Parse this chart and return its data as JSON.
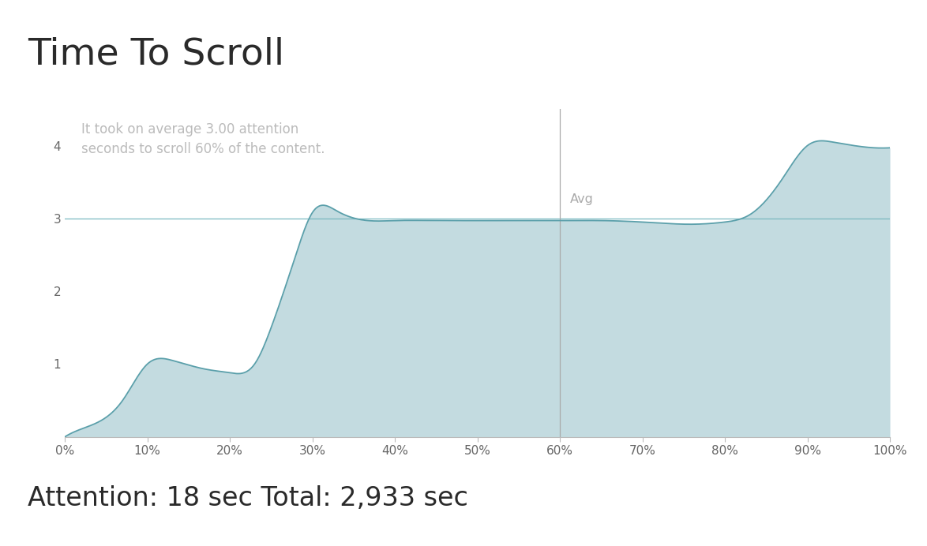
{
  "title": "Time To Scroll",
  "annotation_line1": "It took on average 3.00 attention",
  "annotation_line2": "seconds to scroll 60% of the content.",
  "annotation_color": "#bbbbbb",
  "bottom_text": "Attention: 18 sec Total: 2,933 sec",
  "avg_label": "Avg",
  "avg_x": 60,
  "avg_line_color": "#aaaaaa",
  "hline_y": 3.0,
  "hline_color": "#7ab8c0",
  "fill_color": "#93bfc7",
  "fill_alpha": 0.55,
  "line_color": "#5a9faa",
  "background_color": "#ffffff",
  "x_ticks": [
    0,
    10,
    20,
    30,
    40,
    50,
    60,
    70,
    80,
    90,
    100
  ],
  "x_tick_labels": [
    "0%",
    "10%",
    "20%",
    "30%",
    "40%",
    "50%",
    "60%",
    "70%",
    "80%",
    "90%",
    "100%"
  ],
  "y_ticks": [
    1,
    2,
    3,
    4
  ],
  "ylim": [
    0,
    4.5
  ],
  "xlim": [
    0,
    100
  ],
  "curve_x": [
    0,
    3,
    7,
    10,
    13,
    17,
    20,
    23,
    25,
    28,
    30,
    33,
    36,
    40,
    45,
    50,
    55,
    60,
    65,
    70,
    73,
    76,
    80,
    83,
    87,
    90,
    93,
    97,
    100
  ],
  "curve_y": [
    0.0,
    0.15,
    0.5,
    1.0,
    1.05,
    0.93,
    0.88,
    1.0,
    1.5,
    2.5,
    3.08,
    3.1,
    2.98,
    2.97,
    2.97,
    2.97,
    2.97,
    2.97,
    2.97,
    2.95,
    2.93,
    2.92,
    2.95,
    3.05,
    3.55,
    4.0,
    4.05,
    3.98,
    3.97
  ]
}
